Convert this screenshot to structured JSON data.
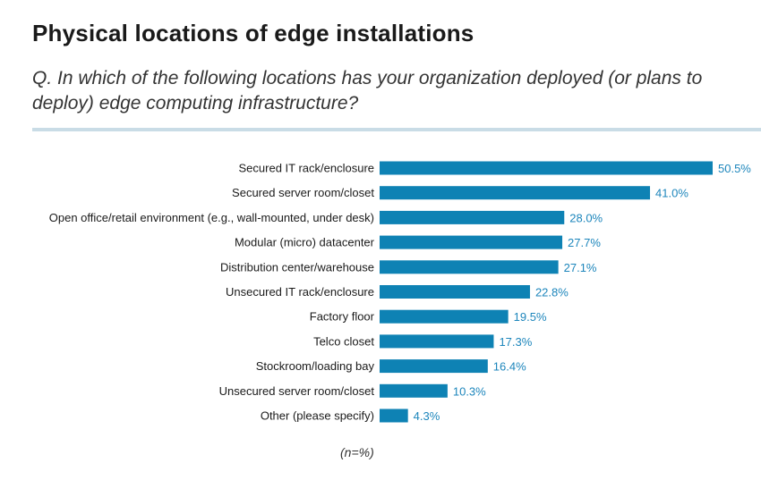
{
  "header": {
    "title": "Physical locations of edge installations",
    "question": "Q. In which of the following locations has your organization deployed (or plans to deploy) edge computing infrastructure?"
  },
  "footnote": "(n=%)",
  "colors": {
    "bar": "#0e82b4",
    "value_label": "#1d86bc",
    "rule": "#c9dce6"
  },
  "chart_data": {
    "type": "bar",
    "orientation": "horizontal",
    "categories": [
      "Secured IT rack/enclosure",
      "Secured server room/closet",
      "Open office/retail environment (e.g., wall-mounted, under desk)",
      "Modular (micro) datacenter",
      "Distribution center/warehouse",
      "Unsecured IT rack/enclosure",
      "Factory floor",
      "Telco closet",
      "Stockroom/loading bay",
      "Unsecured server room/closet",
      "Other (please specify)"
    ],
    "values": [
      50.5,
      41.0,
      28.0,
      27.7,
      27.1,
      22.8,
      19.5,
      17.3,
      16.4,
      10.3,
      4.3
    ],
    "value_labels": [
      "50.5%",
      "41.0%",
      "28.0%",
      "27.7%",
      "27.1%",
      "22.8%",
      "19.5%",
      "17.3%",
      "16.4%",
      "10.3%",
      "4.3%"
    ],
    "xlim": [
      0,
      50.5
    ],
    "grid": false,
    "legend": "none"
  }
}
